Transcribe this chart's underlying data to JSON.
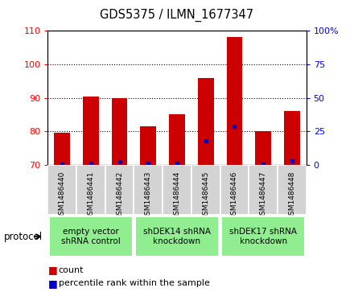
{
  "title": "GDS5375 / ILMN_1677347",
  "samples": [
    "GSM1486440",
    "GSM1486441",
    "GSM1486442",
    "GSM1486443",
    "GSM1486444",
    "GSM1486445",
    "GSM1486446",
    "GSM1486447",
    "GSM1486448"
  ],
  "counts": [
    79.5,
    90.5,
    90.0,
    81.5,
    85.0,
    96.0,
    108.0,
    80.0,
    86.0
  ],
  "percentile_ranks": [
    0.5,
    1.0,
    2.5,
    1.5,
    1.0,
    18.0,
    29.0,
    0.5,
    3.0
  ],
  "bar_color": "#CC0000",
  "percentile_color": "#0000CC",
  "ylim_left": [
    70,
    110
  ],
  "ylim_right": [
    0,
    100
  ],
  "yticks_left": [
    70,
    80,
    90,
    100,
    110
  ],
  "yticks_right": [
    0,
    25,
    50,
    75,
    100
  ],
  "grid_lines": [
    80,
    90,
    100
  ],
  "protocols": [
    {
      "label": "empty vector\nshRNA control",
      "start": 0,
      "end": 3
    },
    {
      "label": "shDEK14 shRNA\nknockdown",
      "start": 3,
      "end": 6
    },
    {
      "label": "shDEK17 shRNA\nknockdown",
      "start": 6,
      "end": 9
    }
  ],
  "green_color": "#90EE90",
  "gray_color": "#D3D3D3",
  "plot_bg": "#FFFFFF",
  "legend_count_label": "count",
  "legend_percentile_label": "percentile rank within the sample",
  "protocol_arrow_label": "protocol"
}
